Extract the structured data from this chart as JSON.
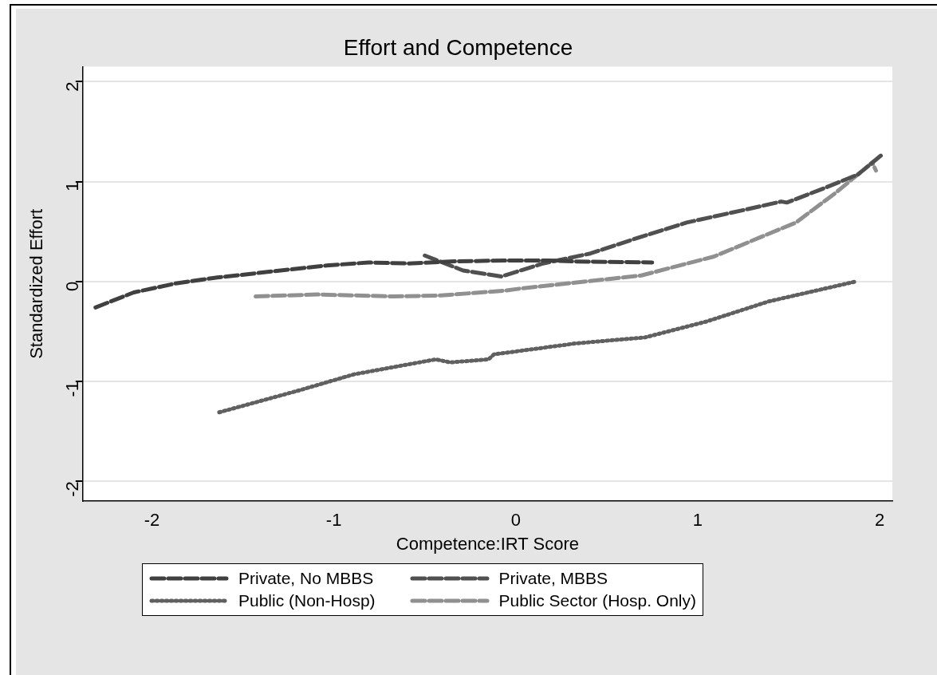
{
  "chart_data": {
    "type": "line",
    "title": "Effort and Competence",
    "xlabel": "Competence:IRT Score",
    "ylabel": "Standardized Effort",
    "xlim": [
      -2.38,
      2.07
    ],
    "xticks": [
      -2,
      -1,
      0,
      1,
      2
    ],
    "ylim": [
      -2.2,
      2.15
    ],
    "yticks": [
      -2,
      -1,
      0,
      1,
      2
    ],
    "grid": "y",
    "legend": "bottom",
    "marker": "none",
    "series": [
      {
        "name": "Private, No MBBS",
        "color": "#404040",
        "line_style": "dashed",
        "x": [
          -2.31,
          -2.1,
          -1.87,
          -1.64,
          -1.34,
          -1.04,
          -0.81,
          -0.59,
          -0.36,
          -0.06,
          0.18,
          0.33,
          0.75
        ],
        "values": [
          -0.26,
          -0.11,
          -0.02,
          0.04,
          0.1,
          0.16,
          0.19,
          0.18,
          0.2,
          0.21,
          0.21,
          0.2,
          0.19
        ]
      },
      {
        "name": "Private, MBBS",
        "color": "#505050",
        "line_style": "dashed",
        "x": [
          -0.5,
          -0.29,
          -0.08,
          0.15,
          0.41,
          0.66,
          0.94,
          1.24,
          1.46,
          1.49,
          1.69,
          1.88,
          2.02
        ],
        "values": [
          0.26,
          0.11,
          0.05,
          0.18,
          0.28,
          0.43,
          0.59,
          0.71,
          0.8,
          0.79,
          0.93,
          1.07,
          1.28
        ]
      },
      {
        "name": "Public (Non-Hosp)",
        "color": "#606060",
        "line_style": "dotted",
        "x": [
          -1.63,
          -1.19,
          -0.89,
          -0.44,
          -0.36,
          -0.15,
          -0.12,
          0.33,
          0.71,
          1.05,
          1.39,
          1.87
        ],
        "values": [
          -1.31,
          -1.09,
          -0.93,
          -0.78,
          -0.81,
          -0.78,
          -0.73,
          -0.62,
          -0.56,
          -0.4,
          -0.2,
          0.0
        ]
      },
      {
        "name": "Public Sector (Hosp. Only)",
        "color": "#909090",
        "line_style": "dashed",
        "x": [
          -1.43,
          -1.09,
          -0.67,
          -0.41,
          -0.05,
          0.03,
          0.54,
          0.69,
          1.09,
          1.54,
          1.76,
          1.96,
          1.98
        ],
        "values": [
          -0.15,
          -0.13,
          -0.15,
          -0.14,
          -0.09,
          -0.07,
          0.03,
          0.06,
          0.25,
          0.59,
          0.89,
          1.19,
          1.11
        ]
      }
    ]
  }
}
